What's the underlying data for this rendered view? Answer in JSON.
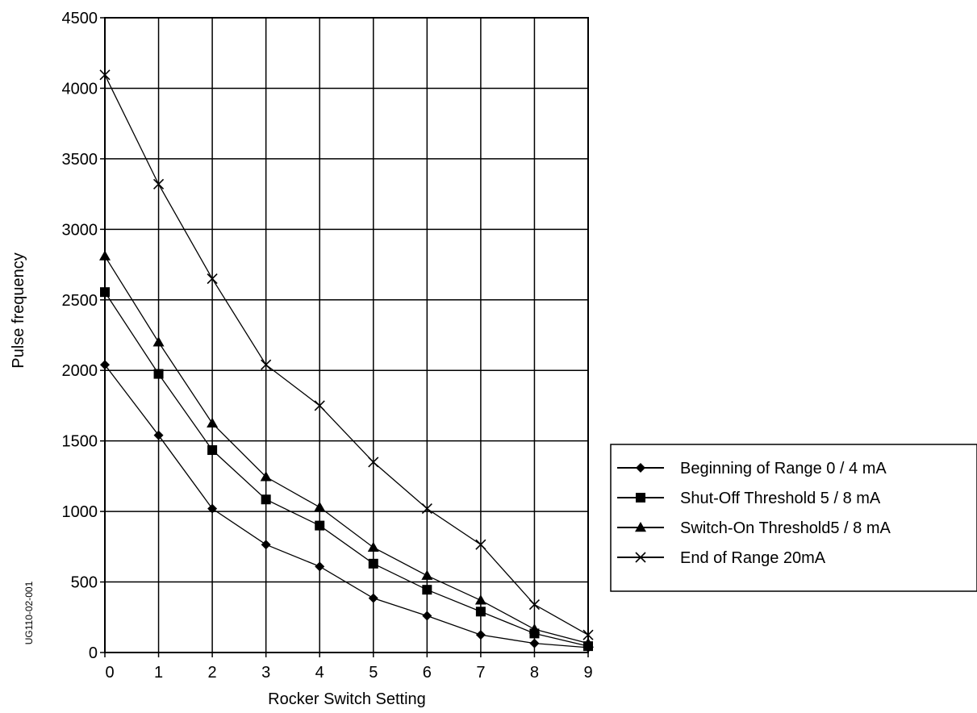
{
  "side_label": "UG110-02-001",
  "chart_data": {
    "type": "line",
    "title": "",
    "xlabel": "Rocker Switch Setting",
    "ylabel": "Pulse frequency",
    "x": [
      0,
      1,
      2,
      3,
      4,
      5,
      6,
      7,
      8,
      9
    ],
    "xlim": [
      0,
      9
    ],
    "ylim": [
      0,
      4500
    ],
    "xticks": [
      "0",
      "1",
      "2",
      "3",
      "4",
      "5",
      "6",
      "7",
      "8",
      "9"
    ],
    "yticks": [
      "0",
      "500",
      "1000",
      "1500",
      "2000",
      "2500",
      "3000",
      "3500",
      "4000",
      "4500"
    ],
    "grid": true,
    "legend_position": "right",
    "series": [
      {
        "name": "Beginning of Range 0 / 4 mA",
        "marker": "diamond",
        "values": [
          2040,
          1540,
          1020,
          765,
          610,
          385,
          260,
          125,
          65,
          35
        ]
      },
      {
        "name": "Shut-Off Threshold 5 / 8 mA",
        "marker": "square",
        "values": [
          2555,
          1975,
          1435,
          1085,
          900,
          630,
          445,
          290,
          135,
          45
        ]
      },
      {
        "name": "Switch-On Threshold5 / 8 mA",
        "marker": "triangle",
        "values": [
          2810,
          2200,
          1625,
          1245,
          1030,
          745,
          545,
          370,
          165,
          65
        ]
      },
      {
        "name": "End of Range 20mA",
        "marker": "x",
        "values": [
          4095,
          3320,
          2650,
          2040,
          1750,
          1350,
          1020,
          765,
          340,
          125
        ]
      }
    ]
  }
}
